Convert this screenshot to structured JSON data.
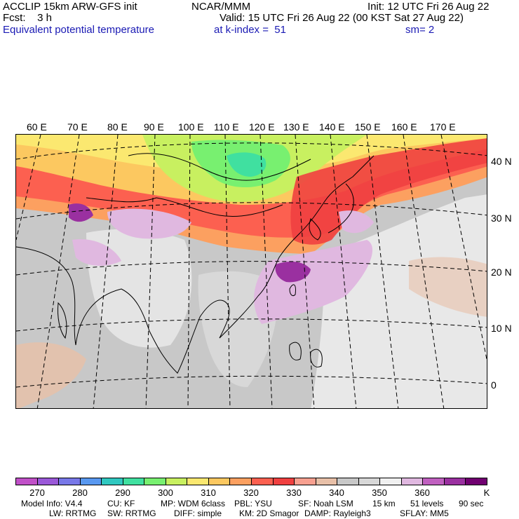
{
  "header": {
    "line1_left": "ACCLIP 15km ARW-GFS init",
    "line1_mid": "NCAR/MMM",
    "line1_right": "Init: 12 UTC Fri 26 Aug 22",
    "line2_left": "Fcst:    3 h",
    "line2_right": "Valid: 15 UTC Fri 26 Aug 22 (00 KST Sat 27 Aug 22)",
    "line3_left": "Equivalent potential temperature",
    "line3_mid": "at k-index =  51",
    "line3_right": "sm= 2"
  },
  "map": {
    "lon_labels": [
      "60 E",
      "70 E",
      "80 E",
      "90 E",
      "100 E",
      "110 E",
      "120 E",
      "130 E",
      "140 E",
      "150 E",
      "160 E",
      "170 E"
    ],
    "lat_labels": [
      "40 N",
      "30 N",
      "20 N",
      "10 N",
      "0"
    ]
  },
  "colorbar": {
    "colors": [
      "#c050c8",
      "#9a58d8",
      "#7878e8",
      "#5898f0",
      "#30c8c0",
      "#40e0a0",
      "#78f070",
      "#c8f060",
      "#fbe870",
      "#fcc860",
      "#fca060",
      "#fc6050",
      "#f04040",
      "#f8a090",
      "#e8c0a8",
      "#c8c8c8",
      "#d8d8d8",
      "#f0f0f0",
      "#e0b8e0",
      "#c060c0",
      "#9a30a0",
      "#700070"
    ],
    "ticks": [
      "270",
      "280",
      "290",
      "300",
      "310",
      "320",
      "330",
      "340",
      "350",
      "360",
      "K"
    ]
  },
  "footer": {
    "line1": [
      "Model Info: V4.4",
      "CU: KF",
      "MP: WDM 6class",
      "PBL: YSU",
      "SF: Noah LSM",
      "15 km",
      "51 levels",
      "90 sec"
    ],
    "line2": [
      "LW: RRTMG",
      "SW: RRTMG",
      "DIFF: simple",
      "KM: 2D Smagor",
      "DAMP: Rayleigh3",
      "SFLAY: MM5"
    ]
  }
}
